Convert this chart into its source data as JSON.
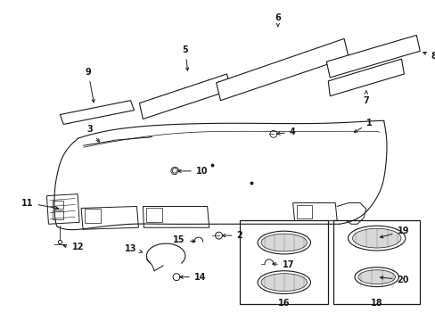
{
  "bg_color": "#ffffff",
  "fig_width": 4.89,
  "fig_height": 3.6,
  "dpi": 100,
  "lc": "#1a1a1a",
  "lw": 0.8,
  "fs": 7.0
}
